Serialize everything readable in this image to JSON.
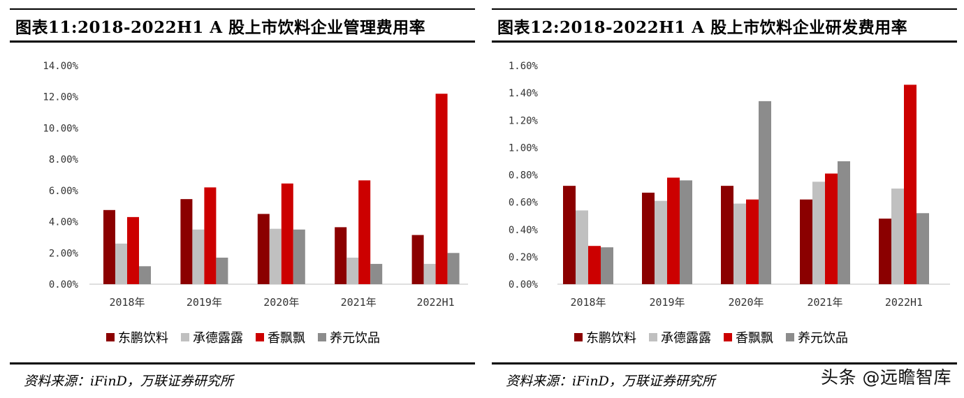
{
  "chart_data": [
    {
      "type": "bar",
      "title": "图表11:2018-2022H1 A 股上市饮料企业管理费用率",
      "categories": [
        "2018年",
        "2019年",
        "2020年",
        "2021年",
        "2022H1"
      ],
      "ylim": [
        0,
        14
      ],
      "yticks": [
        "0.00%",
        "2.00%",
        "4.00%",
        "6.00%",
        "8.00%",
        "10.00%",
        "12.00%",
        "14.00%"
      ],
      "series": [
        {
          "name": "东鹏饮料",
          "color": "#8B0000",
          "values": [
            4.75,
            5.45,
            4.5,
            3.65,
            3.15
          ]
        },
        {
          "name": "承德露露",
          "color": "#C0C0C0",
          "values": [
            2.6,
            3.5,
            3.55,
            1.7,
            1.3
          ]
        },
        {
          "name": "香飘飘",
          "color": "#CC0000",
          "values": [
            4.3,
            6.2,
            6.45,
            6.65,
            12.2
          ]
        },
        {
          "name": "养元饮品",
          "color": "#8C8C8C",
          "values": [
            1.15,
            1.7,
            3.5,
            1.3,
            2.0
          ]
        }
      ],
      "source": "资料来源：iFinD，万联证券研究所"
    },
    {
      "type": "bar",
      "title": "图表12:2018-2022H1 A 股上市饮料企业研发费用率",
      "categories": [
        "2018年",
        "2019年",
        "2020年",
        "2021年",
        "2022H1"
      ],
      "ylim": [
        0,
        1.6
      ],
      "yticks": [
        "0.00%",
        "0.20%",
        "0.40%",
        "0.60%",
        "0.80%",
        "1.00%",
        "1.20%",
        "1.40%",
        "1.60%"
      ],
      "series": [
        {
          "name": "东鹏饮料",
          "color": "#8B0000",
          "values": [
            0.72,
            0.67,
            0.72,
            0.62,
            0.48
          ]
        },
        {
          "name": "承德露露",
          "color": "#C0C0C0",
          "values": [
            0.54,
            0.61,
            0.59,
            0.75,
            0.7
          ]
        },
        {
          "name": "香飘飘",
          "color": "#CC0000",
          "values": [
            0.28,
            0.78,
            0.62,
            0.81,
            1.46
          ]
        },
        {
          "name": "养元饮品",
          "color": "#8C8C8C",
          "values": [
            0.27,
            0.76,
            1.34,
            0.9,
            0.52
          ]
        }
      ],
      "source": "资料来源：iFinD，万联证券研究所"
    }
  ],
  "watermark": "头条 @远瞻智库"
}
